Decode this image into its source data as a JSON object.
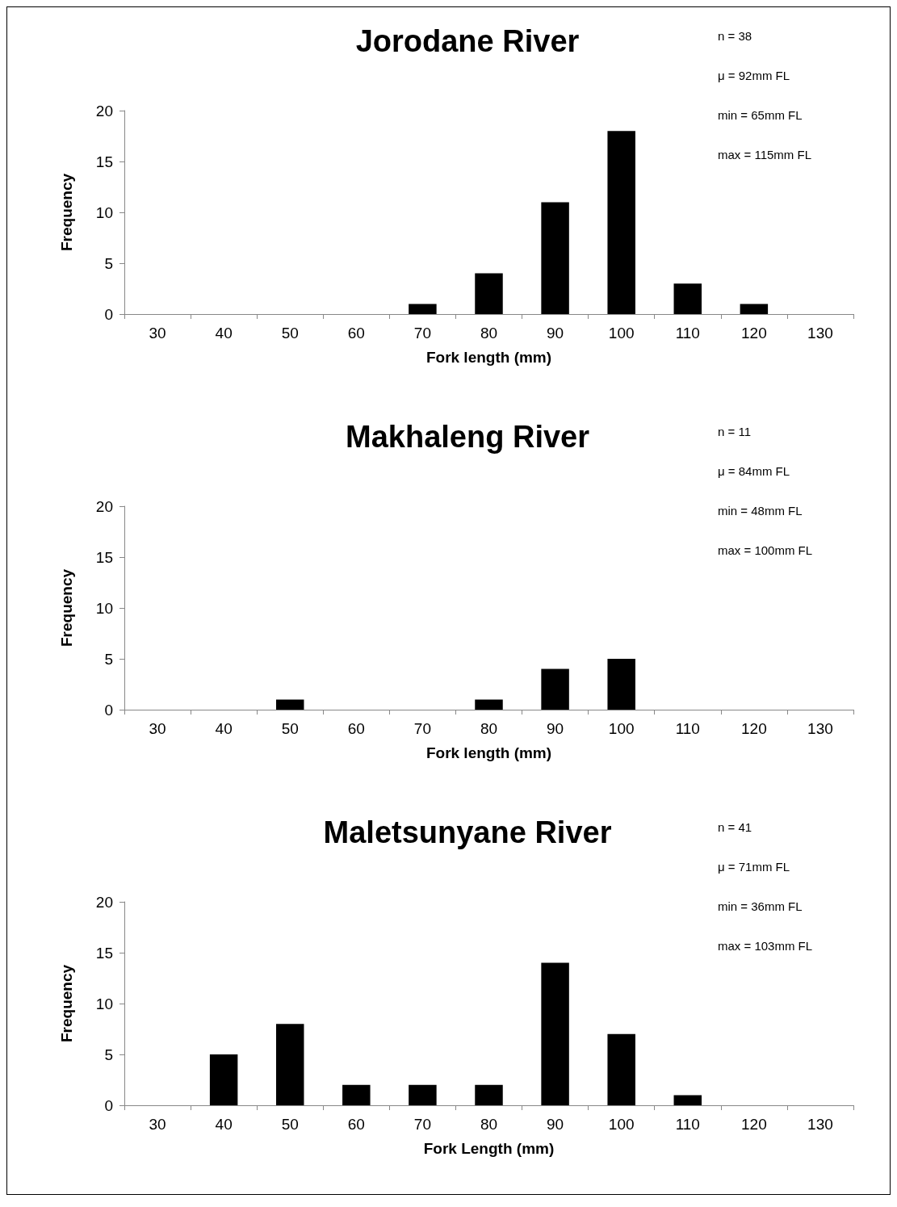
{
  "chart_data": [
    {
      "type": "bar",
      "title": "Jorodane River",
      "xlabel": "Fork length (mm)",
      "ylabel": "Frequency",
      "categories": [
        "30",
        "40",
        "50",
        "60",
        "70",
        "80",
        "90",
        "100",
        "110",
        "120",
        "130"
      ],
      "values": [
        0,
        0,
        0,
        0,
        1,
        4,
        11,
        18,
        3,
        1,
        0
      ],
      "color": "#000000",
      "ylim": [
        0,
        20
      ],
      "yticks": [
        0,
        5,
        10,
        15,
        20
      ],
      "annotations": [
        "n = 38",
        "μ = 92mm FL",
        "min = 65mm FL",
        "max = 115mm FL"
      ]
    },
    {
      "type": "bar",
      "title": "Makhaleng River",
      "xlabel": "Fork length (mm)",
      "ylabel": "Frequency",
      "categories": [
        "30",
        "40",
        "50",
        "60",
        "70",
        "80",
        "90",
        "100",
        "110",
        "120",
        "130"
      ],
      "values": [
        0,
        0,
        1,
        0,
        0,
        1,
        4,
        5,
        0,
        0,
        0
      ],
      "color": "#000000",
      "ylim": [
        0,
        20
      ],
      "yticks": [
        0,
        5,
        10,
        15,
        20
      ],
      "annotations": [
        "n = 11",
        "μ = 84mm FL",
        "min = 48mm FL",
        "max = 100mm FL"
      ]
    },
    {
      "type": "bar",
      "title": "Maletsunyane River",
      "xlabel": "Fork Length (mm)",
      "ylabel": "Frequency",
      "categories": [
        "30",
        "40",
        "50",
        "60",
        "70",
        "80",
        "90",
        "100",
        "110",
        "120",
        "130"
      ],
      "values": [
        0,
        5,
        8,
        2,
        2,
        2,
        14,
        7,
        1,
        0,
        0
      ],
      "color": "#000000",
      "ylim": [
        0,
        20
      ],
      "yticks": [
        0,
        5,
        10,
        15,
        20
      ],
      "annotations": [
        "n = 41",
        "μ = 71mm FL",
        "min = 36mm FL",
        "max = 103mm FL"
      ]
    }
  ]
}
